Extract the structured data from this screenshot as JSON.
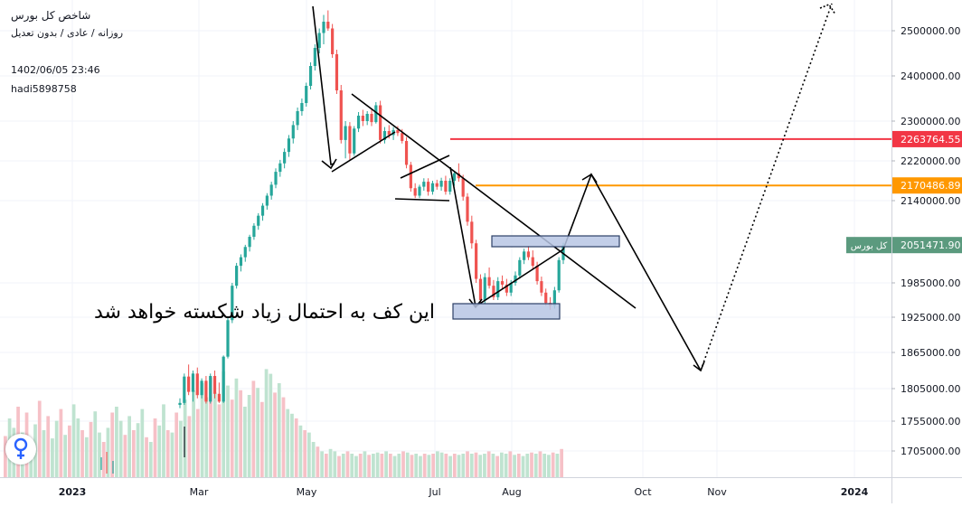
{
  "header": {
    "title": "شاخص کل بورس",
    "subtitle": "روزانه / عادی / بدون تعدیل",
    "timestamp": "1402/06/05 23:46",
    "author": "hadi5898758"
  },
  "annotation": "این کف به احتمال زیاد شکسته خواهد شد",
  "chart_data": {
    "type": "candlestick",
    "y_axis": {
      "ticks": [
        "2500000.00",
        "2400000.00",
        "2300000.00",
        "2220000.00",
        "2140000.00",
        "1985000.00",
        "1925000.00",
        "1865000.00",
        "1805000.00",
        "1755000.00",
        "1705000.00"
      ],
      "tick_values": [
        2500000,
        2400000,
        2300000,
        2220000,
        2140000,
        1985000,
        1925000,
        1865000,
        1805000,
        1755000,
        1705000
      ],
      "scale": "piecewise"
    },
    "x_axis": {
      "labels": [
        "2023",
        "Mar",
        "May",
        "Jul",
        "Aug",
        "Oct",
        "Nov",
        "2024"
      ]
    },
    "price_labels": [
      {
        "text": "2263764.55",
        "value": 2263764.55,
        "color": "#f23645"
      },
      {
        "text": "2170486.89",
        "value": 2170486.89,
        "color": "#ff9800"
      },
      {
        "text": "2051471.90",
        "value": 2051471.9,
        "color": "#5b9a7e",
        "series_label": "کل بورس"
      }
    ],
    "candles": [
      {
        "o": 1780000,
        "h": 1790000,
        "l": 1775000,
        "c": 1783000
      },
      {
        "o": 1783000,
        "h": 1830000,
        "l": 1780000,
        "c": 1825000
      },
      {
        "o": 1825000,
        "h": 1845000,
        "l": 1795000,
        "c": 1800000
      },
      {
        "o": 1800000,
        "h": 1835000,
        "l": 1785000,
        "c": 1830000
      },
      {
        "o": 1830000,
        "h": 1840000,
        "l": 1790000,
        "c": 1795000
      },
      {
        "o": 1795000,
        "h": 1822000,
        "l": 1790000,
        "c": 1818000
      },
      {
        "o": 1818000,
        "h": 1826000,
        "l": 1782000,
        "c": 1785000
      },
      {
        "o": 1785000,
        "h": 1830000,
        "l": 1782000,
        "c": 1826000
      },
      {
        "o": 1826000,
        "h": 1835000,
        "l": 1790000,
        "c": 1797000
      },
      {
        "o": 1797000,
        "h": 1815000,
        "l": 1783000,
        "c": 1785000
      },
      {
        "o": 1785000,
        "h": 1860000,
        "l": 1783000,
        "c": 1858000
      },
      {
        "o": 1858000,
        "h": 1925000,
        "l": 1855000,
        "c": 1920000
      },
      {
        "o": 1920000,
        "h": 1985000,
        "l": 1915000,
        "c": 1980000
      },
      {
        "o": 1980000,
        "h": 2020000,
        "l": 1975000,
        "c": 2015000
      },
      {
        "o": 2015000,
        "h": 2035000,
        "l": 2005000,
        "c": 2030000
      },
      {
        "o": 2030000,
        "h": 2052000,
        "l": 2022000,
        "c": 2048000
      },
      {
        "o": 2048000,
        "h": 2072000,
        "l": 2040000,
        "c": 2068000
      },
      {
        "o": 2068000,
        "h": 2095000,
        "l": 2062000,
        "c": 2090000
      },
      {
        "o": 2090000,
        "h": 2115000,
        "l": 2082000,
        "c": 2110000
      },
      {
        "o": 2110000,
        "h": 2135000,
        "l": 2100000,
        "c": 2130000
      },
      {
        "o": 2130000,
        "h": 2155000,
        "l": 2122000,
        "c": 2150000
      },
      {
        "o": 2150000,
        "h": 2178000,
        "l": 2142000,
        "c": 2172000
      },
      {
        "o": 2172000,
        "h": 2205000,
        "l": 2165000,
        "c": 2198000
      },
      {
        "o": 2198000,
        "h": 2222000,
        "l": 2188000,
        "c": 2215000
      },
      {
        "o": 2215000,
        "h": 2245000,
        "l": 2205000,
        "c": 2238000
      },
      {
        "o": 2238000,
        "h": 2272000,
        "l": 2228000,
        "c": 2265000
      },
      {
        "o": 2265000,
        "h": 2300000,
        "l": 2255000,
        "c": 2292000
      },
      {
        "o": 2292000,
        "h": 2330000,
        "l": 2282000,
        "c": 2322000
      },
      {
        "o": 2322000,
        "h": 2350000,
        "l": 2312000,
        "c": 2340000
      },
      {
        "o": 2340000,
        "h": 2385000,
        "l": 2332000,
        "c": 2378000
      },
      {
        "o": 2378000,
        "h": 2430000,
        "l": 2370000,
        "c": 2422000
      },
      {
        "o": 2422000,
        "h": 2470000,
        "l": 2412000,
        "c": 2462000
      },
      {
        "o": 2462000,
        "h": 2505000,
        "l": 2450000,
        "c": 2495000
      },
      {
        "o": 2495000,
        "h": 2535000,
        "l": 2470000,
        "c": 2520000
      },
      {
        "o": 2520000,
        "h": 2545000,
        "l": 2500000,
        "c": 2505000
      },
      {
        "o": 2505000,
        "h": 2515000,
        "l": 2440000,
        "c": 2448000
      },
      {
        "o": 2448000,
        "h": 2458000,
        "l": 2360000,
        "c": 2368000
      },
      {
        "o": 2368000,
        "h": 2380000,
        "l": 2255000,
        "c": 2262000
      },
      {
        "o": 2262000,
        "h": 2300000,
        "l": 2225000,
        "c": 2290000
      },
      {
        "o": 2290000,
        "h": 2298000,
        "l": 2222000,
        "c": 2235000
      },
      {
        "o": 2235000,
        "h": 2290000,
        "l": 2230000,
        "c": 2285000
      },
      {
        "o": 2285000,
        "h": 2320000,
        "l": 2278000,
        "c": 2312000
      },
      {
        "o": 2312000,
        "h": 2325000,
        "l": 2290000,
        "c": 2300000
      },
      {
        "o": 2300000,
        "h": 2322000,
        "l": 2292000,
        "c": 2316000
      },
      {
        "o": 2316000,
        "h": 2325000,
        "l": 2290000,
        "c": 2298000
      },
      {
        "o": 2298000,
        "h": 2342000,
        "l": 2295000,
        "c": 2335000
      },
      {
        "o": 2335000,
        "h": 2345000,
        "l": 2255000,
        "c": 2262000
      },
      {
        "o": 2262000,
        "h": 2288000,
        "l": 2255000,
        "c": 2280000
      },
      {
        "o": 2280000,
        "h": 2292000,
        "l": 2265000,
        "c": 2272000
      },
      {
        "o": 2272000,
        "h": 2288000,
        "l": 2262000,
        "c": 2282000
      },
      {
        "o": 2282000,
        "h": 2290000,
        "l": 2270000,
        "c": 2276000
      },
      {
        "o": 2276000,
        "h": 2284000,
        "l": 2255000,
        "c": 2260000
      },
      {
        "o": 2260000,
        "h": 2268000,
        "l": 2205000,
        "c": 2212000
      },
      {
        "o": 2212000,
        "h": 2218000,
        "l": 2158000,
        "c": 2165000
      },
      {
        "o": 2165000,
        "h": 2175000,
        "l": 2145000,
        "c": 2150000
      },
      {
        "o": 2150000,
        "h": 2172000,
        "l": 2145000,
        "c": 2168000
      },
      {
        "o": 2168000,
        "h": 2185000,
        "l": 2160000,
        "c": 2178000
      },
      {
        "o": 2178000,
        "h": 2185000,
        "l": 2150000,
        "c": 2158000
      },
      {
        "o": 2158000,
        "h": 2180000,
        "l": 2152000,
        "c": 2175000
      },
      {
        "o": 2175000,
        "h": 2182000,
        "l": 2162000,
        "c": 2168000
      },
      {
        "o": 2168000,
        "h": 2186000,
        "l": 2160000,
        "c": 2180000
      },
      {
        "o": 2180000,
        "h": 2190000,
        "l": 2152000,
        "c": 2158000
      },
      {
        "o": 2158000,
        "h": 2185000,
        "l": 2152000,
        "c": 2180000
      },
      {
        "o": 2180000,
        "h": 2200000,
        "l": 2170000,
        "c": 2195000
      },
      {
        "o": 2195000,
        "h": 2215000,
        "l": 2178000,
        "c": 2185000
      },
      {
        "o": 2185000,
        "h": 2192000,
        "l": 2140000,
        "c": 2148000
      },
      {
        "o": 2148000,
        "h": 2155000,
        "l": 2090000,
        "c": 2098000
      },
      {
        "o": 2098000,
        "h": 2110000,
        "l": 2045000,
        "c": 2055000
      },
      {
        "o": 2055000,
        "h": 2062000,
        "l": 1985000,
        "c": 1992000
      },
      {
        "o": 1992000,
        "h": 2000000,
        "l": 1948000,
        "c": 1955000
      },
      {
        "o": 1955000,
        "h": 2002000,
        "l": 1948000,
        "c": 1995000
      },
      {
        "o": 1995000,
        "h": 2012000,
        "l": 1975000,
        "c": 1980000
      },
      {
        "o": 1980000,
        "h": 1990000,
        "l": 1955000,
        "c": 1960000
      },
      {
        "o": 1960000,
        "h": 1995000,
        "l": 1955000,
        "c": 1988000
      },
      {
        "o": 1988000,
        "h": 1998000,
        "l": 1975000,
        "c": 1982000
      },
      {
        "o": 1982000,
        "h": 1992000,
        "l": 1962000,
        "c": 1968000
      },
      {
        "o": 1968000,
        "h": 1990000,
        "l": 1962000,
        "c": 1985000
      },
      {
        "o": 1985000,
        "h": 2005000,
        "l": 1980000,
        "c": 1998000
      },
      {
        "o": 1998000,
        "h": 2030000,
        "l": 1992000,
        "c": 2025000
      },
      {
        "o": 2025000,
        "h": 2045000,
        "l": 2018000,
        "c": 2040000
      },
      {
        "o": 2040000,
        "h": 2050000,
        "l": 2025000,
        "c": 2030000
      },
      {
        "o": 2030000,
        "h": 2042000,
        "l": 2008000,
        "c": 2015000
      },
      {
        "o": 2015000,
        "h": 2022000,
        "l": 1982000,
        "c": 1988000
      },
      {
        "o": 1988000,
        "h": 1996000,
        "l": 1962000,
        "c": 1968000
      },
      {
        "o": 1968000,
        "h": 1975000,
        "l": 1945000,
        "c": 1950000
      },
      {
        "o": 1950000,
        "h": 1960000,
        "l": 1938000,
        "c": 1945000
      },
      {
        "o": 1945000,
        "h": 1978000,
        "l": 1940000,
        "c": 1972000
      },
      {
        "o": 1972000,
        "h": 2030000,
        "l": 1968000,
        "c": 2025000
      },
      {
        "o": 2025000,
        "h": 2056000,
        "l": 2018000,
        "c": 2051000
      }
    ],
    "volume_levels": [
      0.35,
      0.5,
      0.42,
      0.6,
      0.38,
      0.55,
      0.3,
      0.45,
      0.65,
      0.4,
      0.52,
      0.33,
      0.48,
      0.58,
      0.36,
      0.44,
      0.62,
      0.5,
      0.4,
      0.34,
      0.47,
      0.56,
      0.38,
      0.3,
      0.42,
      0.55,
      0.6,
      0.48,
      0.36,
      0.52,
      0.4,
      0.46,
      0.58,
      0.34,
      0.3,
      0.5,
      0.44,
      0.62,
      0.4,
      0.38,
      0.55,
      0.48,
      0.66,
      0.52,
      0.74,
      0.58,
      0.8,
      0.68,
      0.85,
      0.72,
      0.62,
      0.9,
      0.78,
      0.66,
      0.84,
      0.74,
      0.6,
      0.7,
      0.82,
      0.76,
      0.64,
      0.92,
      0.88,
      0.72,
      0.8,
      0.68,
      0.58,
      0.54,
      0.5,
      0.44,
      0.4,
      0.38,
      0.3,
      0.26,
      0.22,
      0.2,
      0.24,
      0.22,
      0.18,
      0.2,
      0.22,
      0.2,
      0.18,
      0.2,
      0.22,
      0.19,
      0.2,
      0.21,
      0.2,
      0.22,
      0.2,
      0.18,
      0.2,
      0.22,
      0.21,
      0.19,
      0.2,
      0.18,
      0.2,
      0.19,
      0.2,
      0.22,
      0.21,
      0.2,
      0.18,
      0.2,
      0.19,
      0.2,
      0.22,
      0.2,
      0.21,
      0.19,
      0.2,
      0.22,
      0.2,
      0.18,
      0.21,
      0.2,
      0.22,
      0.19,
      0.2,
      0.18,
      0.2,
      0.21,
      0.2,
      0.22,
      0.2,
      0.19,
      0.21,
      0.2,
      0.24
    ]
  }
}
